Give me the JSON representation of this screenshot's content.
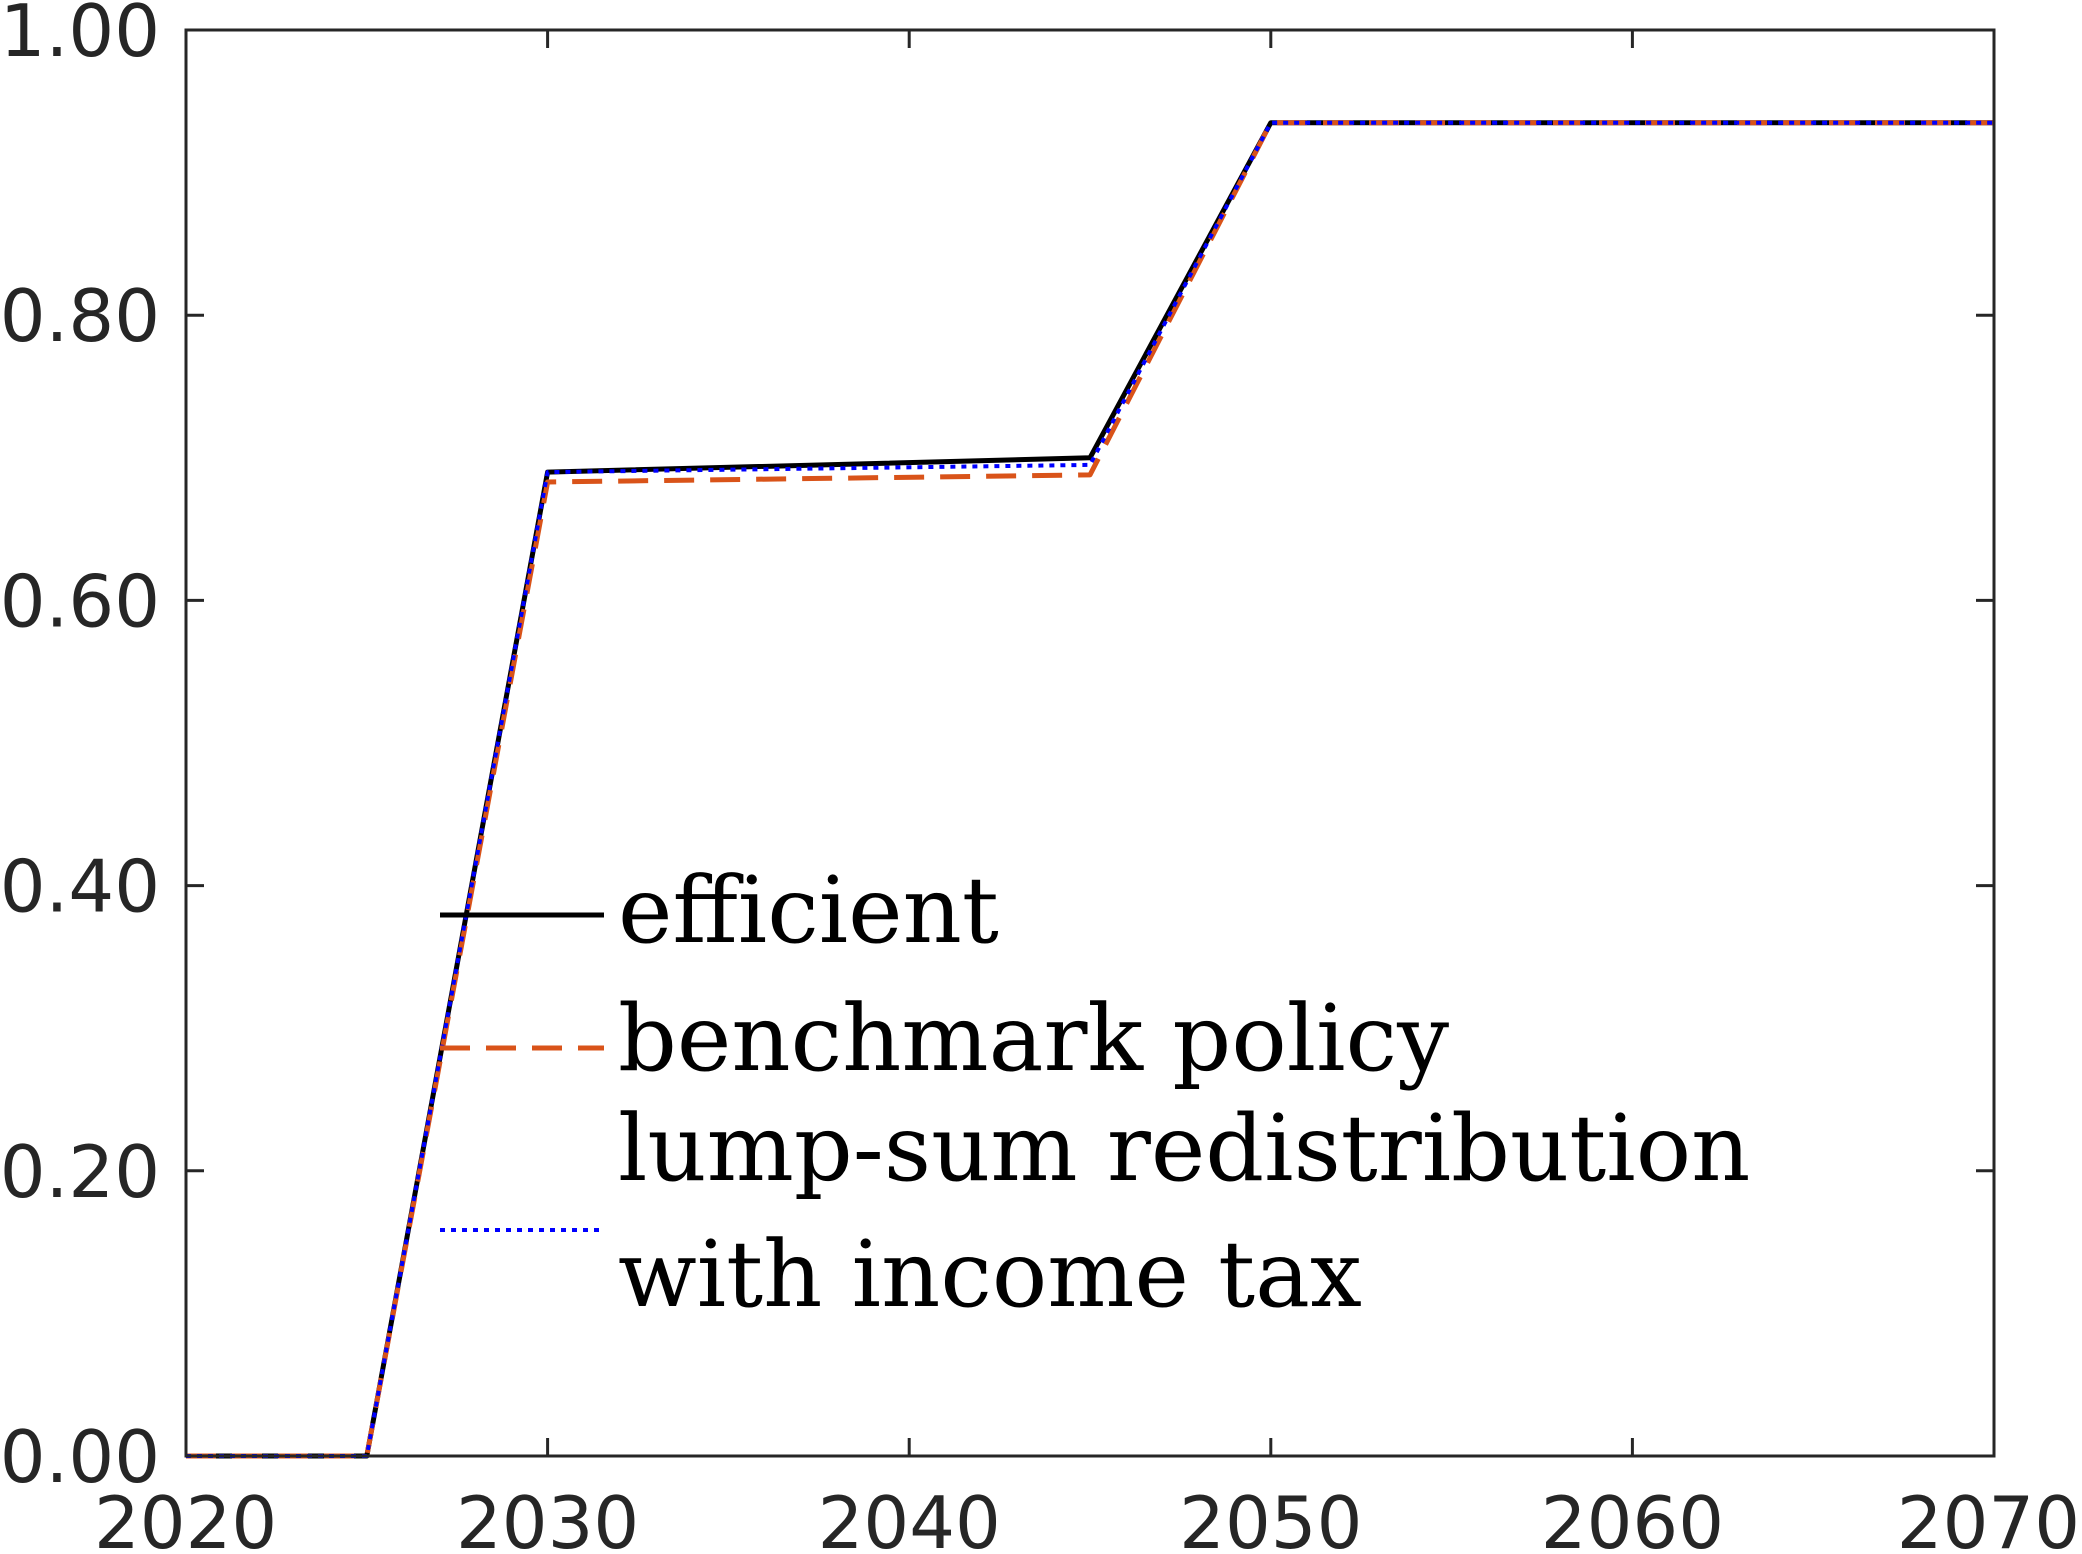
{
  "chart_data": {
    "type": "line",
    "title": "",
    "xlabel": "",
    "ylabel": "",
    "xlim": [
      2020,
      2070
    ],
    "ylim": [
      0,
      1
    ],
    "xticks": [
      "2020",
      "2030",
      "2040",
      "2050",
      "2060",
      "2070"
    ],
    "yticks": [
      "0.00",
      "0.20",
      "0.40",
      "0.60",
      "0.80",
      "1.00"
    ],
    "grid": false,
    "legend_position": "center-left",
    "series": [
      {
        "name": "efficient",
        "color": "#000000",
        "style": "solid",
        "x": [
          2020,
          2025,
          2030,
          2045,
          2050,
          2070
        ],
        "y": [
          0.0,
          0.0,
          0.69,
          0.7,
          0.935,
          0.935
        ]
      },
      {
        "name": "benchmark policy",
        "color": "#d95319",
        "style": "dashed",
        "x": [
          2020,
          2025,
          2030,
          2045,
          2050,
          2070
        ],
        "y": [
          0.0,
          0.0,
          0.683,
          0.688,
          0.935,
          0.935
        ]
      },
      {
        "name": "lump-sum redistribution with income tax",
        "legend_lines": [
          "lump-sum redistribution",
          "with income tax"
        ],
        "color": "#0000ff",
        "style": "dotted",
        "x": [
          2020,
          2025,
          2030,
          2045,
          2050,
          2070
        ],
        "y": [
          0.0,
          0.0,
          0.69,
          0.695,
          0.935,
          0.935
        ]
      }
    ]
  }
}
